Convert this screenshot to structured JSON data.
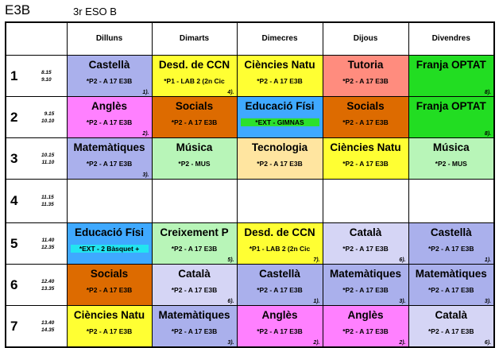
{
  "header": {
    "code": "E3B",
    "group": "3r ESO B"
  },
  "days": [
    "Dilluns",
    "Dimarts",
    "Dimecres",
    "Dijous",
    "Divendres"
  ],
  "colors": {
    "lavender": "#aab0ec",
    "yellow": "#ffff33",
    "coral": "#ff8c7e",
    "green": "#22dd22",
    "magenta": "#ff80ff",
    "orange": "#dd6b00",
    "lightblue": "#3fa9ff",
    "lightgreen": "#b8f5b8",
    "tan": "#ffe5a0",
    "paleblue": "#d5d5f5",
    "white": "#ffffff",
    "cyan": "#22e5f0",
    "brightgreen": "#2ce02c"
  },
  "rows": [
    {
      "num": "1",
      "start": "8.15",
      "end": "9.10",
      "cells": [
        {
          "subject": "Castellà",
          "room": "*P2 - A 17 E3B",
          "group": "1).",
          "color": "lavender"
        },
        {
          "subject": "Desd. de CCN",
          "room": "*P1 - LAB 2 (2n Cic",
          "group": "4).",
          "color": "yellow"
        },
        {
          "subject": "Ciències Natu",
          "room": "*P2 - A 17 E3B",
          "group": "",
          "color": "yellow"
        },
        {
          "subject": "Tutoria",
          "room": "*P2 - A 17 E3B",
          "group": "",
          "color": "coral"
        },
        {
          "subject": "Franja OPTAT",
          "room": "",
          "group": "8).",
          "color": "green"
        }
      ]
    },
    {
      "num": "2",
      "start": "9.15",
      "end": "10.10",
      "cells": [
        {
          "subject": "Anglès",
          "room": "*P2 - A 17 E3B",
          "group": "2).",
          "color": "magenta"
        },
        {
          "subject": "Socials",
          "room": "*P2 - A 17 E3B",
          "group": "",
          "color": "orange"
        },
        {
          "subject": "Educació Físi",
          "room": "*EXT - GIMNAS",
          "group": "",
          "color": "lightblue",
          "roomBox": "brightgreen"
        },
        {
          "subject": "Socials",
          "room": "*P2 - A 17 E3B",
          "group": "",
          "color": "orange"
        },
        {
          "subject": "Franja OPTAT",
          "room": "",
          "group": "8).",
          "color": "green"
        }
      ]
    },
    {
      "num": "3",
      "start": "10.15",
      "end": "11.10",
      "cells": [
        {
          "subject": "Matemàtiques",
          "room": "*P2 - A 17 E3B",
          "group": "3).",
          "color": "lavender"
        },
        {
          "subject": "Música",
          "room": "*P2 - MUS",
          "group": "",
          "color": "lightgreen"
        },
        {
          "subject": "Tecnologia",
          "room": "*P2 - A 17 E3B",
          "group": "",
          "color": "tan"
        },
        {
          "subject": "Ciències Natu",
          "room": "*P2 - A 17 E3B",
          "group": "",
          "color": "yellow"
        },
        {
          "subject": "Música",
          "room": "*P2 - MUS",
          "group": "",
          "color": "lightgreen"
        }
      ]
    },
    {
      "num": "4",
      "start": "11.15",
      "end": "11.35",
      "pause": true,
      "cells": [
        {
          "subject": "",
          "room": "",
          "group": "",
          "color": "white"
        },
        {
          "subject": "",
          "room": "",
          "group": "",
          "color": "white"
        },
        {
          "subject": "",
          "room": "",
          "group": "",
          "color": "white"
        },
        {
          "subject": "",
          "room": "",
          "group": "",
          "color": "white"
        },
        {
          "subject": "",
          "room": "",
          "group": "",
          "color": "white"
        }
      ]
    },
    {
      "num": "5",
      "start": "11.40",
      "end": "12.35",
      "cells": [
        {
          "subject": "Educació Físi",
          "room": "*EXT - 2 Bàsquet +",
          "group": "",
          "color": "lightblue",
          "roomBox": "cyan"
        },
        {
          "subject": "Creixement P",
          "room": "*P2 - A 17 E3B",
          "group": "5).",
          "color": "lightgreen"
        },
        {
          "subject": "Desd. de CCN",
          "room": "*P1 - LAB 2 (2n Cic",
          "group": "7).",
          "color": "yellow"
        },
        {
          "subject": "Català",
          "room": "*P2 - A 17 E3B",
          "group": "6).",
          "color": "paleblue"
        },
        {
          "subject": "Castellà",
          "room": "*P2 - A 17 E3B",
          "group": "1).",
          "color": "lavender"
        }
      ]
    },
    {
      "num": "6",
      "start": "12.40",
      "end": "13.35",
      "cells": [
        {
          "subject": "Socials",
          "room": "*P2 - A 17 E3B",
          "group": "",
          "color": "orange"
        },
        {
          "subject": "Català",
          "room": "*P2 - A 17 E3B",
          "group": "6).",
          "color": "paleblue"
        },
        {
          "subject": "Castellà",
          "room": "*P2 - A 17 E3B",
          "group": "1).",
          "color": "lavender"
        },
        {
          "subject": "Matemàtiques",
          "room": "*P2 - A 17 E3B",
          "group": "3).",
          "color": "lavender"
        },
        {
          "subject": "Matemàtiques",
          "room": "*P2 - A 17 E3B",
          "group": "3).",
          "color": "lavender"
        }
      ]
    },
    {
      "num": "7",
      "start": "13.40",
      "end": "14.35",
      "cells": [
        {
          "subject": "Ciències Natu",
          "room": "*P2 - A 17 E3B",
          "group": "",
          "color": "yellow"
        },
        {
          "subject": "Matemàtiques",
          "room": "*P2 - A 17 E3B",
          "group": "3).",
          "color": "lavender"
        },
        {
          "subject": "Anglès",
          "room": "*P2 - A 17 E3B",
          "group": "2).",
          "color": "magenta"
        },
        {
          "subject": "Anglès",
          "room": "*P2 - A 17 E3B",
          "group": "2).",
          "color": "magenta"
        },
        {
          "subject": "Català",
          "room": "*P2 - A 17 E3B",
          "group": "6).",
          "color": "paleblue"
        }
      ]
    }
  ]
}
